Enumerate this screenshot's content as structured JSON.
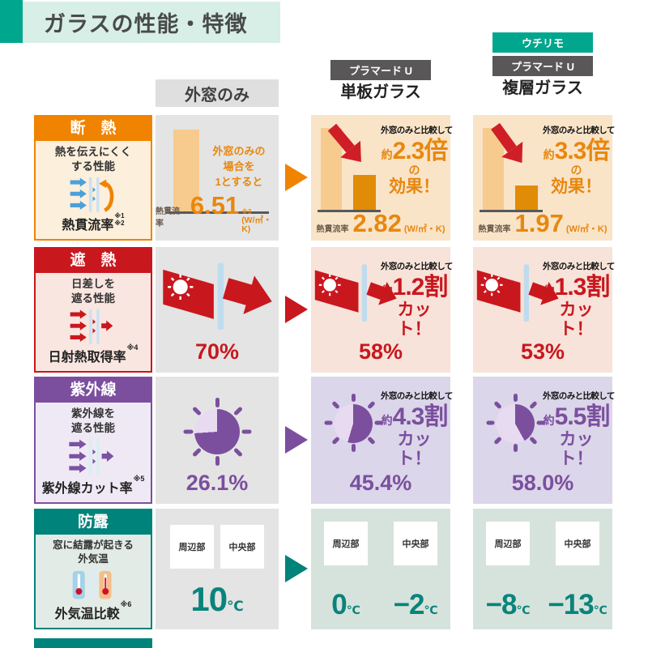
{
  "title": "ガラスの性能・特徴",
  "columns": {
    "baseline_header": "外窓のみ",
    "single": {
      "badge": "プラマード U",
      "name": "単板ガラス"
    },
    "double": {
      "badge_top": "ウチリモ",
      "badge": "プラマード U",
      "name": "複層ガラス"
    }
  },
  "rows": {
    "insulation": {
      "label": {
        "title": "断　熱",
        "desc1": "熱を伝えにくく",
        "desc2": "する性能",
        "metric": "熱貫流率",
        "note1": "※1",
        "note2": "※2"
      },
      "baseline": {
        "cap1": "外窓のみの",
        "cap2": "場合を",
        "cap3": "1とすると",
        "metric": "熱貫流率",
        "value": "6.51",
        "note": "※3",
        "unit": "(W/㎡・K)",
        "bar_pct": 100
      },
      "single": {
        "compare": "外窓のみと比較して",
        "approx": "約",
        "big": "2.3倍",
        "suffix": "の",
        "line2": "効果！",
        "metric": "熱貫流率",
        "value": "2.82",
        "unit": "(W/㎡・K)",
        "bar_pct": 43
      },
      "double": {
        "compare": "外窓のみと比較して",
        "approx": "約",
        "big": "3.3倍",
        "suffix": "の",
        "line2": "効果！",
        "metric": "熱貫流率",
        "value": "1.97",
        "unit": "(W/㎡・K)",
        "bar_pct": 30
      }
    },
    "shading": {
      "label": {
        "title": "遮　熱",
        "desc1": "日差しを",
        "desc2": "遮る性能",
        "metric": "日射熱取得率",
        "note": "※4"
      },
      "baseline": {
        "value": "70%"
      },
      "single": {
        "compare": "外窓のみと比較して",
        "approx": "約",
        "big": "1.2割",
        "line2": "カット！",
        "value": "58%"
      },
      "double": {
        "compare": "外窓のみと比較して",
        "approx": "約",
        "big": "1.3割",
        "line2": "カット！",
        "value": "53%"
      }
    },
    "uv": {
      "label": {
        "title": "紫外線",
        "desc1": "紫外線を",
        "desc2": "遮る性能",
        "metric": "紫外線カット率",
        "note": "※5"
      },
      "baseline": {
        "value": "26.1%",
        "pie_pct": 26.1
      },
      "single": {
        "compare": "外窓のみと比較して",
        "approx": "約",
        "big": "4.3割",
        "line2": "カット！",
        "value": "45.4%",
        "pie_pct": 45.4
      },
      "double": {
        "compare": "外窓のみと比較して",
        "approx": "約",
        "big": "5.5割",
        "line2": "カット！",
        "value": "58.0%",
        "pie_pct": 58.0
      }
    },
    "condensation": {
      "label": {
        "title": "防露",
        "desc1": "窓に結露が起きる",
        "desc2": "外気温",
        "metric": "外気温比較",
        "note": "※6"
      },
      "col_labels": {
        "edge": "周辺部",
        "center": "中央部"
      },
      "baseline": {
        "value": "10",
        "unit": "℃"
      },
      "single": {
        "edge_value": "0",
        "center_value": "−2",
        "unit": "℃"
      },
      "double": {
        "edge_value": "−8",
        "center_value": "−13",
        "unit": "℃"
      }
    }
  },
  "colors": {
    "brand_teal": "#00A78E",
    "badge_dark": "#595757",
    "insulation_orange": "#F08300",
    "shading_red": "#C9171E",
    "uv_purple": "#7B4F9E",
    "condensation_teal": "#00837A",
    "uv_pie_light": "#E7DAF1",
    "uv_pie_dark": "#7B4F9E"
  }
}
